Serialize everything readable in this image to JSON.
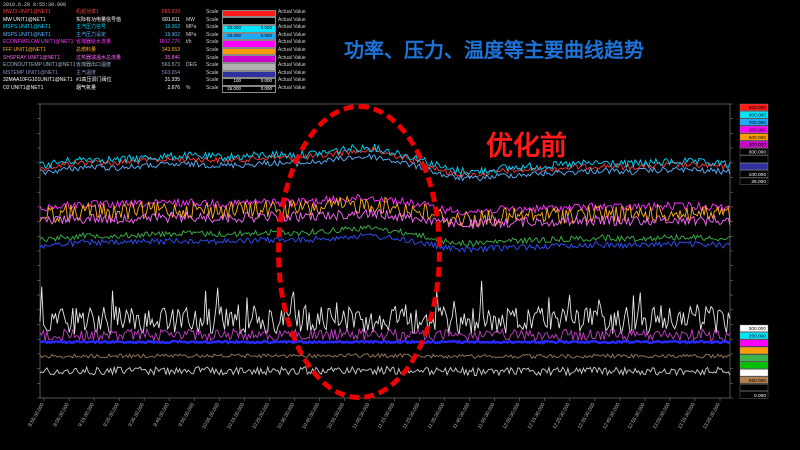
{
  "header": {
    "timestamp": "2018.6.28 8:55:30.000",
    "title": "功率、压力、温度等主要曲线趋势",
    "annotation": "优化前",
    "scale_label": "Scale",
    "actual_value_label": "Actual Value"
  },
  "tags": [
    {
      "tag": "MWJ3 UNIT1@NET1",
      "desc": "机组功率1",
      "value": "885.939",
      "unit": "",
      "color": "#ff3b3b",
      "box": "#ff1a1a",
      "min": "",
      "max": ""
    },
    {
      "tag": "MW UNIT1@NET1",
      "desc": "实际有功电量信号值",
      "value": "681.811",
      "unit": "MW",
      "color": "#ffffff",
      "box": "#000000",
      "min": "",
      "max": ""
    },
    {
      "tag": "MSPS UNIT1@NET1",
      "desc": "主汽压力信号",
      "value": "19.362",
      "unit": "MPa",
      "color": "#00d7ff",
      "box": "#00e5ff",
      "min": "20.000",
      "max": "0.000"
    },
    {
      "tag": "MSPS UNIT1@NET1",
      "desc": "主汽压力设定",
      "value": "19.902",
      "unit": "MPa",
      "color": "#5ab4ff",
      "box": "#1fa9ff",
      "min": "20.000",
      "max": "0.000"
    },
    {
      "tag": "ECONFWFLOW UNIT1@NET1",
      "desc": "省煤器给水流量",
      "value": "1817.776",
      "unit": "t/h",
      "color": "#ff33ff",
      "box": "#ff00ff",
      "min": "",
      "max": ""
    },
    {
      "tag": "FFF UNIT1@NET1",
      "desc": "总燃料量",
      "value": "343.653",
      "unit": "",
      "color": "#ffb020",
      "box": "#ff9d00",
      "min": "",
      "max": ""
    },
    {
      "tag": "SHSPRAY UNIT1@NET1",
      "desc": "过热器减温水总流量",
      "value": "35.846",
      "unit": "",
      "color": "#ff66ff",
      "box": "#cc00cc",
      "min": "",
      "max": ""
    },
    {
      "tag": "ECONOUTTEMP UNIT1@NET1",
      "desc": "省煤器出口温度",
      "value": "563.573",
      "unit": "DEG",
      "color": "#9fb4c8",
      "box": "#b0b0b0",
      "min": "",
      "max": ""
    },
    {
      "tag": "MSTEMP UNIT1@NET1",
      "desc": "主汽温度",
      "value": "563.654",
      "unit": "",
      "color": "#8e8ecf",
      "box": "#3030a0",
      "min": "",
      "max": ""
    },
    {
      "tag": "32MAA10FG101UNIT1@NET1",
      "desc": "#1高压调门阀位",
      "value": "31.335",
      "unit": "",
      "color": "#ffffff",
      "box": "#000000",
      "min": "100",
      "max": "0.000"
    },
    {
      "tag": "O2 UNIT1@NET1",
      "desc": "烟气氧量",
      "value": "2.676",
      "unit": "%",
      "color": "#ffffff",
      "box": "#000000",
      "min": "25.000",
      "max": "0.000"
    }
  ],
  "chart_data": {
    "type": "line",
    "title": "功率、压力、温度等主要曲线趋势",
    "annotation": "优化前",
    "xlabel": "",
    "ylabel": "",
    "grid": false,
    "x_tick_labels": [
      "8:55:30.000",
      "9:05:30.000",
      "9:15:30.000",
      "9:25:30.000",
      "9:35:30.000",
      "9:45:30.000",
      "9:55:30.000",
      "10:05:30.000",
      "10:15:30.000",
      "10:25:30.000",
      "10:35:30.000",
      "10:45:30.000",
      "10:55:30.000",
      "11:05:30.000",
      "11:15:30.000",
      "11:25:30.000",
      "11:35:30.000",
      "11:45:30.000",
      "11:55:30.000",
      "12:05:30.000",
      "12:15:30.000",
      "12:25:30.000",
      "12:35:30.000",
      "12:45:30.000",
      "12:55:30.000",
      "13:05:30.000",
      "13:15:30.000",
      "13:25:30.000"
    ],
    "axis_upper": [
      "900.000",
      "800.000",
      "700.000",
      "600.000",
      "500.000",
      "400.000",
      "300.000",
      "",
      "",
      "100.000",
      "25.000"
    ],
    "axis_lower": [
      "300.000",
      "250.000",
      "",
      "",
      "",
      "",
      "",
      "550.000",
      "",
      "0.000"
    ],
    "series_values": [
      0.72,
      0.78,
      0.82,
      0.8,
      0.83,
      0.85,
      0.86,
      0.84,
      0.85,
      0.88,
      0.87,
      0.9,
      0.96,
      0.98,
      0.9,
      0.8,
      0.66,
      0.63,
      0.68,
      0.7,
      0.72,
      0.74,
      0.76,
      0.74,
      0.76,
      0.78,
      0.76,
      0.74
    ],
    "series": [
      {
        "name": "MWJ3 UNIT1@NET1",
        "color": "#ff3b3b"
      },
      {
        "name": "MSPS UNIT1@NET1",
        "color": "#00d7ff"
      },
      {
        "name": "MSPS UNIT1@NET1",
        "color": "#5ab4ff"
      },
      {
        "name": "ECONFWFLOW UNIT1@NET1",
        "color": "#ff33ff"
      },
      {
        "name": "FFF UNIT1@NET1",
        "color": "#ffb020"
      },
      {
        "name": "SHSPRAY UNIT1@NET1",
        "color": "#ff66ff"
      },
      {
        "name": "ECONOUTTEMP UNIT1@NET1",
        "color": "#9fb4c8"
      },
      {
        "name": "MSTEMP UNIT1@NET1",
        "color": "#8e8ecf"
      },
      {
        "name": "32MAA10FG101UNIT1@NET1",
        "color": "#ffffff"
      },
      {
        "name": "O2 UNIT1@NET1",
        "color": "#ffffff"
      }
    ]
  }
}
